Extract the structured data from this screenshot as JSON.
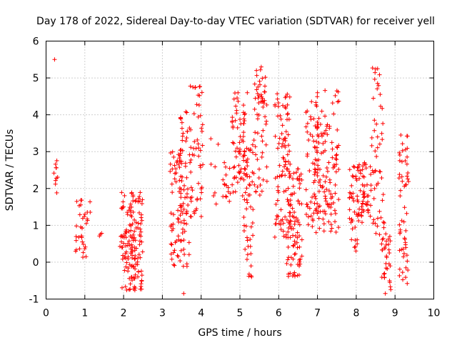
{
  "chart_data": {
    "type": "scatter",
    "title": "Day 178 of 2022, Sidereal Day-to-day VTEC variation (SDTVAR) for receiver yell",
    "xlabel": "GPS time / hours",
    "ylabel": "SDTVAR / TECUs",
    "xlim": [
      0,
      10
    ],
    "ylim": [
      -1,
      6
    ],
    "xticks": [
      0,
      1,
      2,
      3,
      4,
      5,
      6,
      7,
      8,
      9,
      10
    ],
    "yticks": [
      -1,
      0,
      1,
      2,
      3,
      4,
      5,
      6
    ],
    "grid": true,
    "marker": "+",
    "color": "#ff0000",
    "series": [
      {
        "name": "SDTVAR",
        "clusters": [
          {
            "x": [
              0.2,
              0.3
            ],
            "y": [
              1.8,
              3.1
            ],
            "n": 10
          },
          {
            "x": [
              0.75,
              1.15
            ],
            "y": [
              0.1,
              1.7
            ],
            "n": 35
          },
          {
            "x": [
              1.35,
              1.45
            ],
            "y": [
              0.6,
              0.9
            ],
            "n": 3
          },
          {
            "x": [
              1.9,
              2.5
            ],
            "y": [
              -0.8,
              1.9
            ],
            "n": 150
          },
          {
            "x": [
              3.2,
              3.5
            ],
            "y": [
              -0.1,
              3.2
            ],
            "n": 60
          },
          {
            "x": [
              3.45,
              3.7
            ],
            "y": [
              -0.9,
              4.1
            ],
            "n": 60
          },
          {
            "x": [
              3.7,
              4.05
            ],
            "y": [
              1.2,
              4.8
            ],
            "n": 55
          },
          {
            "x": [
              4.25,
              4.45
            ],
            "y": [
              1.5,
              3.4
            ],
            "n": 6
          },
          {
            "x": [
              4.55,
              4.75
            ],
            "y": [
              1.5,
              2.9
            ],
            "n": 15
          },
          {
            "x": [
              4.8,
              5.2
            ],
            "y": [
              1.6,
              4.6
            ],
            "n": 70
          },
          {
            "x": [
              5.1,
              5.35
            ],
            "y": [
              -0.4,
              3.2
            ],
            "n": 45
          },
          {
            "x": [
              5.35,
              5.7
            ],
            "y": [
              1.8,
              5.3
            ],
            "n": 60
          },
          {
            "x": [
              5.9,
              6.3
            ],
            "y": [
              0.6,
              4.6
            ],
            "n": 90
          },
          {
            "x": [
              6.2,
              6.6
            ],
            "y": [
              -0.4,
              2.7
            ],
            "n": 90
          },
          {
            "x": [
              6.7,
              7.1
            ],
            "y": [
              0.8,
              4.6
            ],
            "n": 90
          },
          {
            "x": [
              7.1,
              7.55
            ],
            "y": [
              0.7,
              4.7
            ],
            "n": 85
          },
          {
            "x": [
              7.8,
              8.05
            ],
            "y": [
              0.1,
              2.6
            ],
            "n": 40
          },
          {
            "x": [
              8.05,
              8.4
            ],
            "y": [
              1.0,
              2.8
            ],
            "n": 50
          },
          {
            "x": [
              8.4,
              8.7
            ],
            "y": [
              0.6,
              5.3
            ],
            "n": 45
          },
          {
            "x": [
              8.65,
              8.9
            ],
            "y": [
              -0.8,
              1.1
            ],
            "n": 35
          },
          {
            "x": [
              9.1,
              9.35
            ],
            "y": [
              -0.6,
              3.5
            ],
            "n": 55
          }
        ],
        "points": [
          {
            "x": 0.22,
            "y": 5.5
          },
          {
            "x": 5.55,
            "y": 5.3
          },
          {
            "x": 8.55,
            "y": 5.25
          },
          {
            "x": 8.55,
            "y": 4.85
          },
          {
            "x": 3.85,
            "y": 4.75
          },
          {
            "x": 4.95,
            "y": 4.6
          },
          {
            "x": 7.5,
            "y": 4.65
          },
          {
            "x": 7.0,
            "y": 4.6
          },
          {
            "x": 8.55,
            "y": 3.4
          },
          {
            "x": 9.15,
            "y": 3.45
          },
          {
            "x": 4.25,
            "y": 3.35
          },
          {
            "x": 5.3,
            "y": -0.4
          },
          {
            "x": 3.55,
            "y": -0.85
          },
          {
            "x": 8.75,
            "y": -0.85
          }
        ]
      }
    ]
  }
}
